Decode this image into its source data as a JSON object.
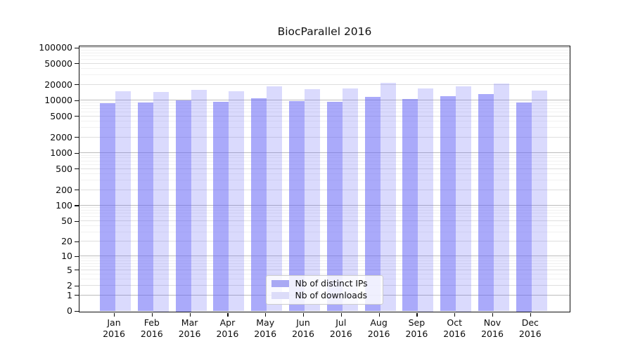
{
  "title": "BiocParallel 2016",
  "legend": {
    "items": [
      {
        "label": "Nb of distinct IPs",
        "swatch_color": "#a9a9f4"
      },
      {
        "label": "Nb of downloads",
        "swatch_color": "#dcdcf9"
      }
    ]
  },
  "chart_data": {
    "type": "bar",
    "title": "BiocParallel 2016",
    "months": [
      "Jan",
      "Feb",
      "Mar",
      "Apr",
      "May",
      "Jun",
      "Jul",
      "Aug",
      "Sep",
      "Oct",
      "Nov",
      "Dec"
    ],
    "year": "2016",
    "series": [
      {
        "name": "Nb of distinct IPs",
        "fill": "rgba(100,100,245,0.55)",
        "values": [
          8600,
          9000,
          9900,
          9200,
          10600,
          9500,
          9100,
          11500,
          10400,
          11800,
          12800,
          8900
        ]
      },
      {
        "name": "Nb of downloads",
        "fill": "rgba(100,100,245,0.24)",
        "values": [
          14400,
          14100,
          15600,
          14500,
          18200,
          15900,
          16300,
          21200,
          16700,
          18300,
          20300,
          14800
        ]
      }
    ],
    "y_scale": "symlog (log10 of 1+y), linear at 0",
    "ylim": [
      0,
      105000
    ],
    "y_ticks": [
      {
        "value": 100000,
        "label": "100000"
      },
      {
        "value": 50000,
        "label": "50000"
      },
      {
        "value": 20000,
        "label": "20000"
      },
      {
        "value": 10000,
        "label": "10000"
      },
      {
        "value": 5000,
        "label": "5000"
      },
      {
        "value": 2000,
        "label": "2000"
      },
      {
        "value": 1000,
        "label": "1000"
      },
      {
        "value": 500,
        "label": "500"
      },
      {
        "value": 200,
        "label": "200"
      },
      {
        "value": 100,
        "label": "100"
      },
      {
        "value": 50,
        "label": "50"
      },
      {
        "value": 20,
        "label": "20"
      },
      {
        "value": 10,
        "label": "10"
      },
      {
        "value": 5,
        "label": "5"
      },
      {
        "value": 2,
        "label": "2"
      },
      {
        "value": 1,
        "label": "1"
      },
      {
        "value": 0,
        "label": "0"
      }
    ],
    "grid": "major decade lines darker, 2x/5x lines light, log minors faint, drawn beneath translucent bars",
    "legend_position": "inside plot, lower center"
  }
}
